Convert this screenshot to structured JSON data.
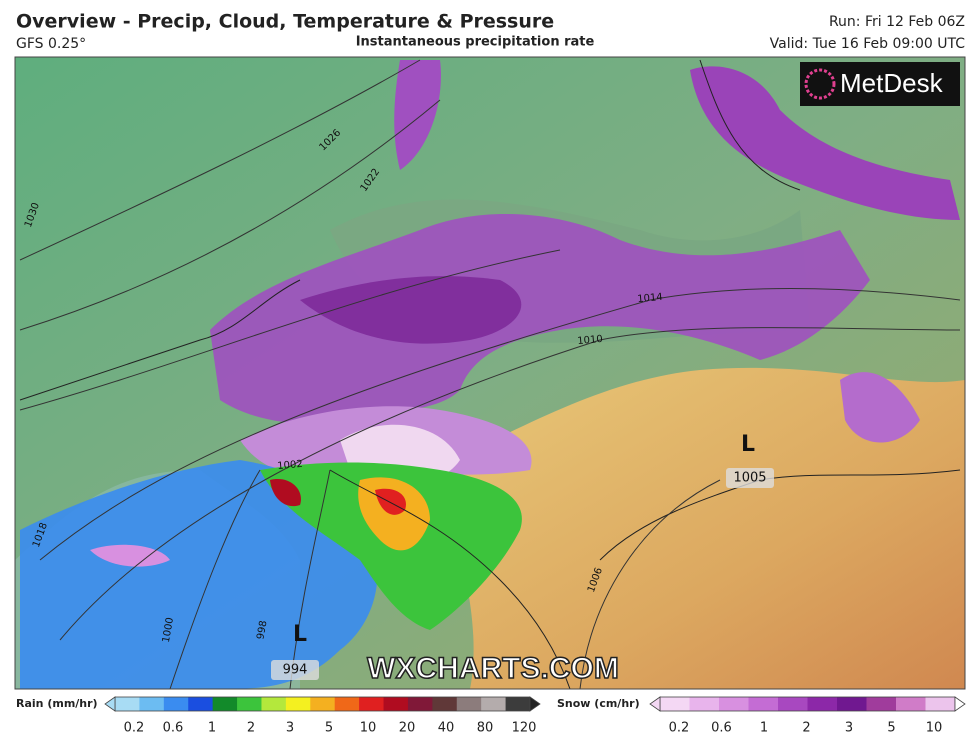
{
  "header": {
    "title": "Overview - Precip, Cloud, Temperature & Pressure",
    "model": "GFS 0.25°",
    "subtitle": "Instantaneous precipitation rate",
    "run": "Run: Fri 12 Feb 06Z",
    "valid": "Valid: Tue 16 Feb 09:00 UTC"
  },
  "map": {
    "logo": "MetDesk",
    "watermark": "WXCHARTS.COM",
    "isobar_labels": [
      "1030",
      "1026",
      "1022",
      "1018",
      "1014",
      "1010",
      "1006",
      "1002",
      "998",
      "1000"
    ],
    "lows": [
      {
        "letter": "L",
        "pressure": "1005"
      },
      {
        "letter": "L",
        "pressure": "994"
      }
    ]
  },
  "legend": {
    "rain": {
      "label": "Rain (mm/hr)",
      "ticks": [
        0.2,
        0.6,
        1,
        2,
        3,
        5,
        10,
        20,
        40,
        80,
        120
      ],
      "colors": [
        "#a8dcf4",
        "#6cbcf2",
        "#3a8cf0",
        "#1a4ee0",
        "#128a2a",
        "#3cc43c",
        "#b4e83c",
        "#f4f020",
        "#f4b020",
        "#f06818",
        "#e02020",
        "#b00c20",
        "#801838",
        "#603838",
        "#8c7c7c",
        "#b4acac",
        "#3c3c3c"
      ]
    },
    "snow": {
      "label": "Snow (cm/hr)",
      "ticks": [
        0.2,
        0.6,
        1,
        2,
        3,
        5,
        10
      ],
      "colors": [
        "#f4d8f4",
        "#e8b4ec",
        "#d890e0",
        "#c46cd4",
        "#a848c0",
        "#8c28a8",
        "#701890",
        "#a03c9c",
        "#d07cc8",
        "#ecc4ec"
      ]
    }
  }
}
